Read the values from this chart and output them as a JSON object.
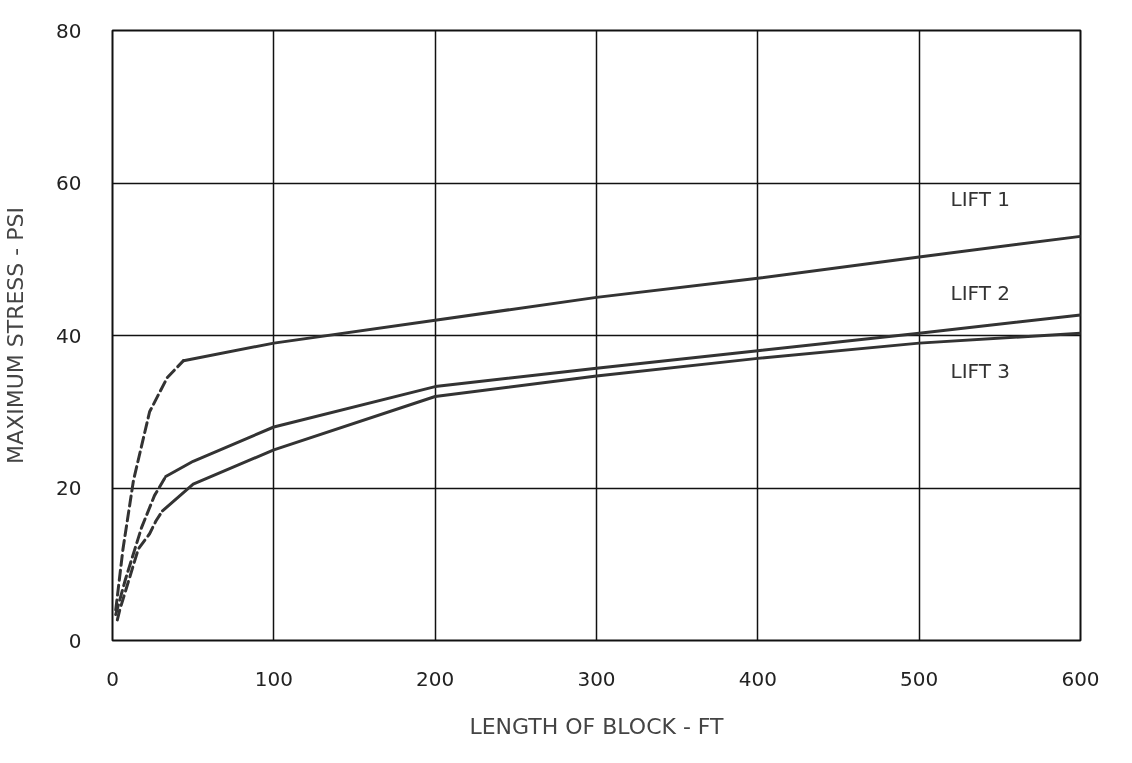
{
  "chart_data": {
    "type": "line",
    "xlabel": "LENGTH OF BLOCK - FT",
    "ylabel": "MAXIMUM STRESS - PSI",
    "xlim": [
      0,
      600
    ],
    "ylim": [
      0,
      80
    ],
    "xticks": [
      0,
      100,
      200,
      300,
      400,
      500,
      600
    ],
    "yticks": [
      0,
      20,
      40,
      60,
      80
    ],
    "grid": true,
    "line_style": "solid",
    "series": [
      {
        "name": "LIFT 1",
        "color": "#333333",
        "x": [
          44,
          100,
          200,
          300,
          400,
          500,
          600
        ],
        "values": [
          36.7,
          39,
          42,
          45,
          47.5,
          50.3,
          53
        ]
      },
      {
        "name": "LIFT 2",
        "color": "#333333",
        "x": [
          33,
          50,
          100,
          200,
          300,
          400,
          500,
          600
        ],
        "values": [
          21.5,
          23.5,
          28,
          33.3,
          35.7,
          38,
          40.3,
          42.7
        ]
      },
      {
        "name": "LIFT 3",
        "color": "#333333",
        "x": [
          31,
          50,
          100,
          200,
          300,
          400,
          500,
          600
        ],
        "values": [
          17,
          20.5,
          25,
          32,
          34.7,
          37,
          39,
          40.3
        ]
      },
      {
        "color": "#333333",
        "line_style": "dashed",
        "x": [
          2,
          6.5,
          13,
          23,
          34,
          44
        ],
        "values": [
          4,
          12,
          21,
          30,
          34.5,
          36.7
        ]
      },
      {
        "color": "#333333",
        "line_style": "dashed",
        "x": [
          2,
          8,
          18,
          26,
          33
        ],
        "values": [
          3.4,
          8,
          14.8,
          19,
          21.5
        ]
      },
      {
        "color": "#333333",
        "line_style": "dashed",
        "x": [
          3,
          4.5,
          16,
          23,
          27,
          31
        ],
        "values": [
          2.7,
          4,
          12,
          14,
          15.7,
          17
        ]
      }
    ]
  }
}
